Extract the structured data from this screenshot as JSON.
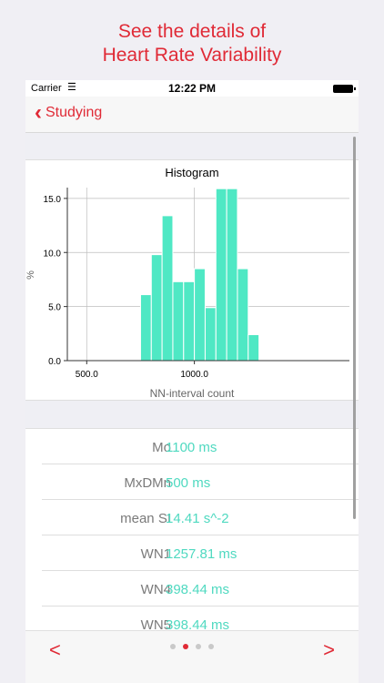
{
  "promo": {
    "line1": "See the details of",
    "line2": "Heart Rate Variability"
  },
  "status": {
    "carrier": "Carrier",
    "time": "12:22 PM"
  },
  "nav": {
    "back_label": "Studying"
  },
  "chart_data": {
    "type": "bar",
    "title": "Histogram",
    "xlabel": "NN-interval count",
    "ylabel": "%",
    "xlim": [
      410,
      1720
    ],
    "ylim": [
      0,
      16
    ],
    "xticks": [
      500,
      1000
    ],
    "xtick_labels": [
      "500.0",
      "1000.0"
    ],
    "yticks": [
      0,
      5,
      10,
      15
    ],
    "ytick_labels": [
      "0.0",
      "5.0",
      "10.0",
      "15.0"
    ],
    "grid": true,
    "bar_color": "#4fe8c4",
    "bins": [
      {
        "x0": 750,
        "x1": 800,
        "value": 6.1
      },
      {
        "x0": 800,
        "x1": 850,
        "value": 9.8
      },
      {
        "x0": 850,
        "x1": 900,
        "value": 13.4
      },
      {
        "x0": 900,
        "x1": 950,
        "value": 7.3
      },
      {
        "x0": 950,
        "x1": 1000,
        "value": 7.3
      },
      {
        "x0": 1000,
        "x1": 1050,
        "value": 8.5
      },
      {
        "x0": 1050,
        "x1": 1100,
        "value": 4.9
      },
      {
        "x0": 1100,
        "x1": 1150,
        "value": 15.9
      },
      {
        "x0": 1150,
        "x1": 1200,
        "value": 15.9
      },
      {
        "x0": 1200,
        "x1": 1250,
        "value": 8.5
      },
      {
        "x0": 1250,
        "x1": 1300,
        "value": 2.4
      }
    ]
  },
  "metrics": [
    {
      "label": "Mo",
      "value": "1100 ms"
    },
    {
      "label": "MxDMn",
      "value": "500 ms"
    },
    {
      "label": "mean SI",
      "value": "14.41 s^-2"
    },
    {
      "label": "WN1",
      "value": "1257.81 ms"
    },
    {
      "label": "WN4",
      "value": "398.44 ms"
    },
    {
      "label": "WN5",
      "value": "398.44 ms"
    }
  ],
  "pager": {
    "prev": "<",
    "next": ">",
    "pages": 4,
    "current": 1
  },
  "colors": {
    "accent": "#e02a36",
    "value": "#4fd9c0",
    "bars": "#4fe8c4"
  }
}
